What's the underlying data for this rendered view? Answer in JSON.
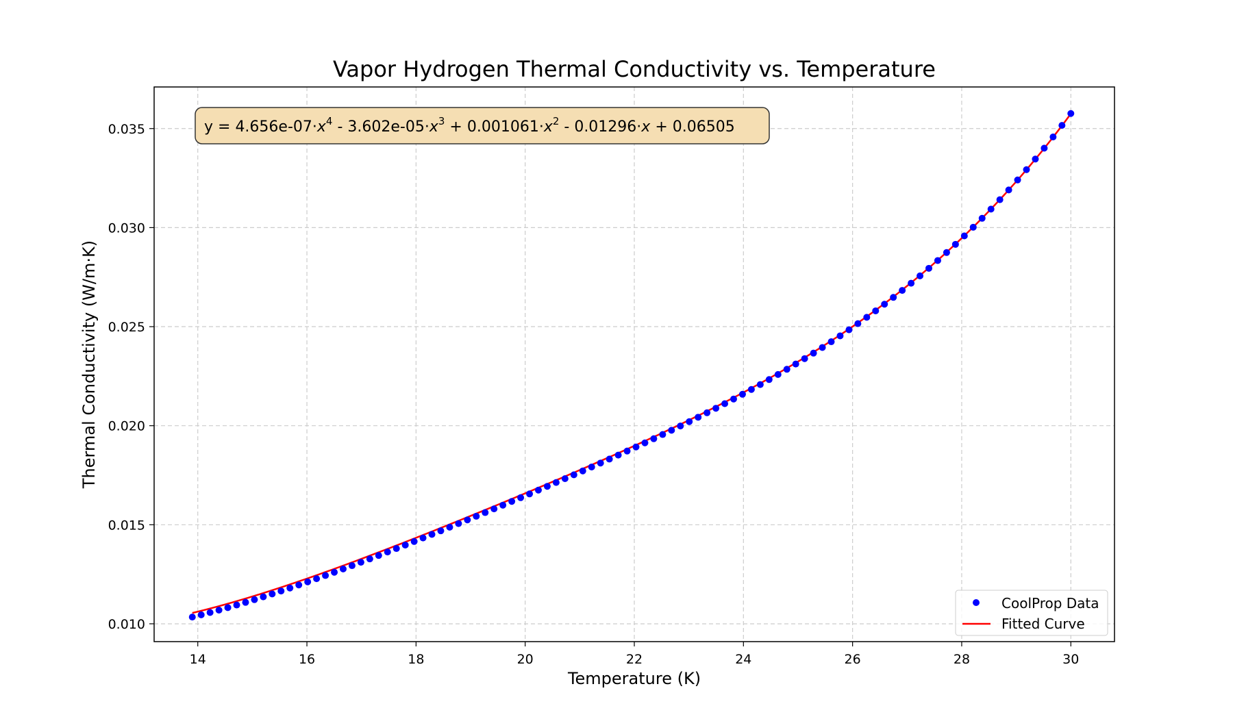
{
  "chart_data": {
    "type": "scatter",
    "title": "Vapor Hydrogen Thermal Conductivity vs. Temperature",
    "xlabel": "Temperature (K)",
    "ylabel": "Thermal Conductivity (W/m·K)",
    "xlim": [
      13.2,
      30.8
    ],
    "ylim": [
      0.0091,
      0.0371
    ],
    "xticks": [
      14,
      16,
      18,
      20,
      22,
      24,
      26,
      28,
      30
    ],
    "xtick_labels": [
      "14",
      "16",
      "18",
      "20",
      "22",
      "24",
      "26",
      "28",
      "30"
    ],
    "yticks": [
      0.01,
      0.015,
      0.02,
      0.025,
      0.03,
      0.035
    ],
    "ytick_labels": [
      "0.010",
      "0.015",
      "0.020",
      "0.025",
      "0.030",
      "0.035"
    ],
    "grid": true,
    "legend_position": "lower right",
    "equation": {
      "prefix": "y = 4.656e-07·",
      "t1": "x",
      "e1": "4",
      "m1": " - 3.602e-05·",
      "t2": "x",
      "e2": "3",
      "m2": " + 0.001061·",
      "t3": "x",
      "e3": "2",
      "m3": " - 0.01296·",
      "t4": "x",
      "suffix": " + 0.06505"
    },
    "series": [
      {
        "name": "CoolProp Data",
        "kind": "scatter",
        "color": "#0000ff",
        "x_start": 13.9,
        "x_end": 30.0,
        "count": 100,
        "y_first": 0.01034,
        "y_last": 0.03576
      },
      {
        "name": "Fitted Curve",
        "kind": "line",
        "color": "#ff0000",
        "coefficients": [
          4.656e-07,
          -3.602e-05,
          0.001061,
          -0.01296,
          0.06505
        ]
      }
    ],
    "colors": {
      "equation_box_fill": "#f5deb3",
      "equation_box_edge": "#333333",
      "grid": "#cccccc"
    }
  }
}
